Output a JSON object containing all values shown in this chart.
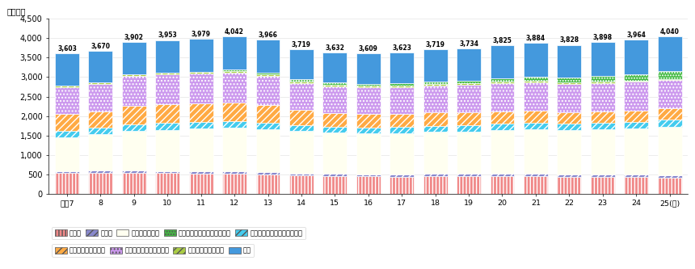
{
  "years": [
    "平成7",
    "8",
    "9",
    "10",
    "11",
    "12",
    "13",
    "14",
    "15",
    "16",
    "17",
    "18",
    "19",
    "20",
    "21",
    "22",
    "23",
    "24",
    "25(年)"
  ],
  "totals": [
    3603,
    3670,
    3902,
    3953,
    3979,
    4042,
    3966,
    3719,
    3632,
    3609,
    3623,
    3719,
    3734,
    3825,
    3884,
    3828,
    3898,
    3964,
    4040
  ],
  "segments": {
    "通信業": [
      530,
      540,
      535,
      530,
      525,
      520,
      500,
      470,
      455,
      445,
      440,
      460,
      450,
      455,
      455,
      435,
      435,
      430,
      420
    ],
    "放送業": [
      55,
      55,
      55,
      55,
      55,
      55,
      55,
      55,
      55,
      55,
      55,
      55,
      55,
      55,
      55,
      55,
      55,
      55,
      55
    ],
    "情報サービス業": [
      870,
      930,
      1020,
      1060,
      1100,
      1130,
      1100,
      1090,
      1060,
      1055,
      1065,
      1080,
      1100,
      1130,
      1150,
      1145,
      1160,
      1200,
      1255
    ],
    "映像・音声・文字情報制作業": [
      170,
      170,
      175,
      175,
      170,
      165,
      160,
      155,
      155,
      155,
      155,
      155,
      155,
      155,
      155,
      165,
      170,
      170,
      175
    ],
    "情報通信関連製造業": [
      420,
      420,
      480,
      480,
      480,
      480,
      460,
      380,
      355,
      345,
      340,
      340,
      335,
      330,
      325,
      300,
      295,
      290,
      285
    ],
    "情報通信関連サービス業": [
      700,
      700,
      760,
      770,
      760,
      760,
      750,
      700,
      685,
      680,
      680,
      700,
      710,
      720,
      730,
      725,
      730,
      730,
      730
    ],
    "情報通信関連建設業": [
      40,
      40,
      45,
      45,
      45,
      50,
      45,
      40,
      40,
      38,
      38,
      35,
      35,
      35,
      35,
      33,
      32,
      32,
      32
    ],
    "インターネット附随サービス": [
      0,
      0,
      0,
      0,
      0,
      35,
      45,
      55,
      55,
      58,
      62,
      68,
      72,
      90,
      110,
      130,
      155,
      175,
      195
    ],
    "研究": [
      818,
      815,
      832,
      838,
      844,
      847,
      851,
      774,
      772,
      778,
      788,
      826,
      822,
      855,
      869,
      840,
      866,
      882,
      893
    ]
  },
  "colors": {
    "通信業": "#F08888",
    "放送業": "#8888CC",
    "情報サービス業": "#FFFFF0",
    "映像・音声・文字情報制作業": "#44CCEE",
    "情報通信関連製造業": "#FFAA44",
    "情報通信関連サービス業": "#CC99EE",
    "情報通信関連建設業": "#AACC44",
    "インターネット附随サービス": "#44BB44",
    "研究": "#4499DD"
  },
  "hatches": {
    "通信業": "||||",
    "放送業": "////",
    "情報サービス業": "",
    "映像・音声・文字情報制作業": "////",
    "情報通信関連製造業": "////",
    "情報通信関連サービス業": "....",
    "情報通信関連建設業": "////",
    "インターネット附随サービス": ".....",
    "研究": "===="
  },
  "order": [
    "通信業",
    "放送業",
    "情報サービス業",
    "映像・音声・文字情報制作業",
    "情報通信関連製造業",
    "情報通信関連サービス業",
    "情報通信関連建設業",
    "インターネット附随サービス",
    "研究"
  ],
  "legend_row1": [
    "通信業",
    "放送業",
    "情報サービス業",
    "インターネット附随サービス",
    "映像・音声・文字情報制作業"
  ],
  "legend_row2": [
    "情報通信関連製造業",
    "情報通信関連サービス業",
    "情報通信関連建設業",
    "研究"
  ],
  "ylabel": "（千人）"
}
